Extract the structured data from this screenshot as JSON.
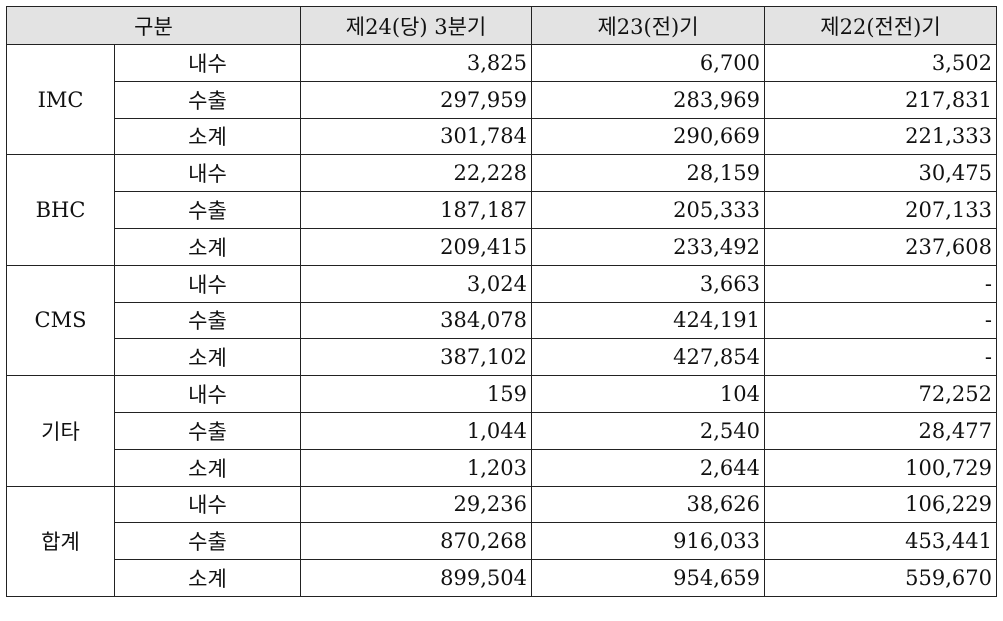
{
  "header": {
    "category": "구분",
    "col1": "제24(당) 3분기",
    "col2": "제23(전)기",
    "col3": "제22(전전)기"
  },
  "groups": [
    {
      "name": "IMC",
      "rows": [
        {
          "label": "내수",
          "v1": "3,825",
          "v2": "6,700",
          "v3": "3,502"
        },
        {
          "label": "수출",
          "v1": "297,959",
          "v2": "283,969",
          "v3": "217,831"
        },
        {
          "label": "소계",
          "v1": "301,784",
          "v2": "290,669",
          "v3": "221,333"
        }
      ]
    },
    {
      "name": "BHC",
      "rows": [
        {
          "label": "내수",
          "v1": "22,228",
          "v2": "28,159",
          "v3": "30,475"
        },
        {
          "label": "수출",
          "v1": "187,187",
          "v2": "205,333",
          "v3": "207,133"
        },
        {
          "label": "소계",
          "v1": "209,415",
          "v2": "233,492",
          "v3": "237,608"
        }
      ]
    },
    {
      "name": "CMS",
      "rows": [
        {
          "label": "내수",
          "v1": "3,024",
          "v2": "3,663",
          "v3": "-"
        },
        {
          "label": "수출",
          "v1": "384,078",
          "v2": "424,191",
          "v3": "-"
        },
        {
          "label": "소계",
          "v1": "387,102",
          "v2": "427,854",
          "v3": "-"
        }
      ]
    },
    {
      "name": "기타",
      "rows": [
        {
          "label": "내수",
          "v1": "159",
          "v2": "104",
          "v3": "72,252"
        },
        {
          "label": "수출",
          "v1": "1,044",
          "v2": "2,540",
          "v3": "28,477"
        },
        {
          "label": "소계",
          "v1": "1,203",
          "v2": "2,644",
          "v3": "100,729"
        }
      ]
    },
    {
      "name": "합계",
      "rows": [
        {
          "label": "내수",
          "v1": "29,236",
          "v2": "38,626",
          "v3": "106,229"
        },
        {
          "label": "수출",
          "v1": "870,268",
          "v2": "916,033",
          "v3": "453,441"
        },
        {
          "label": "소계",
          "v1": "899,504",
          "v2": "954,659",
          "v3": "559,670"
        }
      ]
    }
  ]
}
